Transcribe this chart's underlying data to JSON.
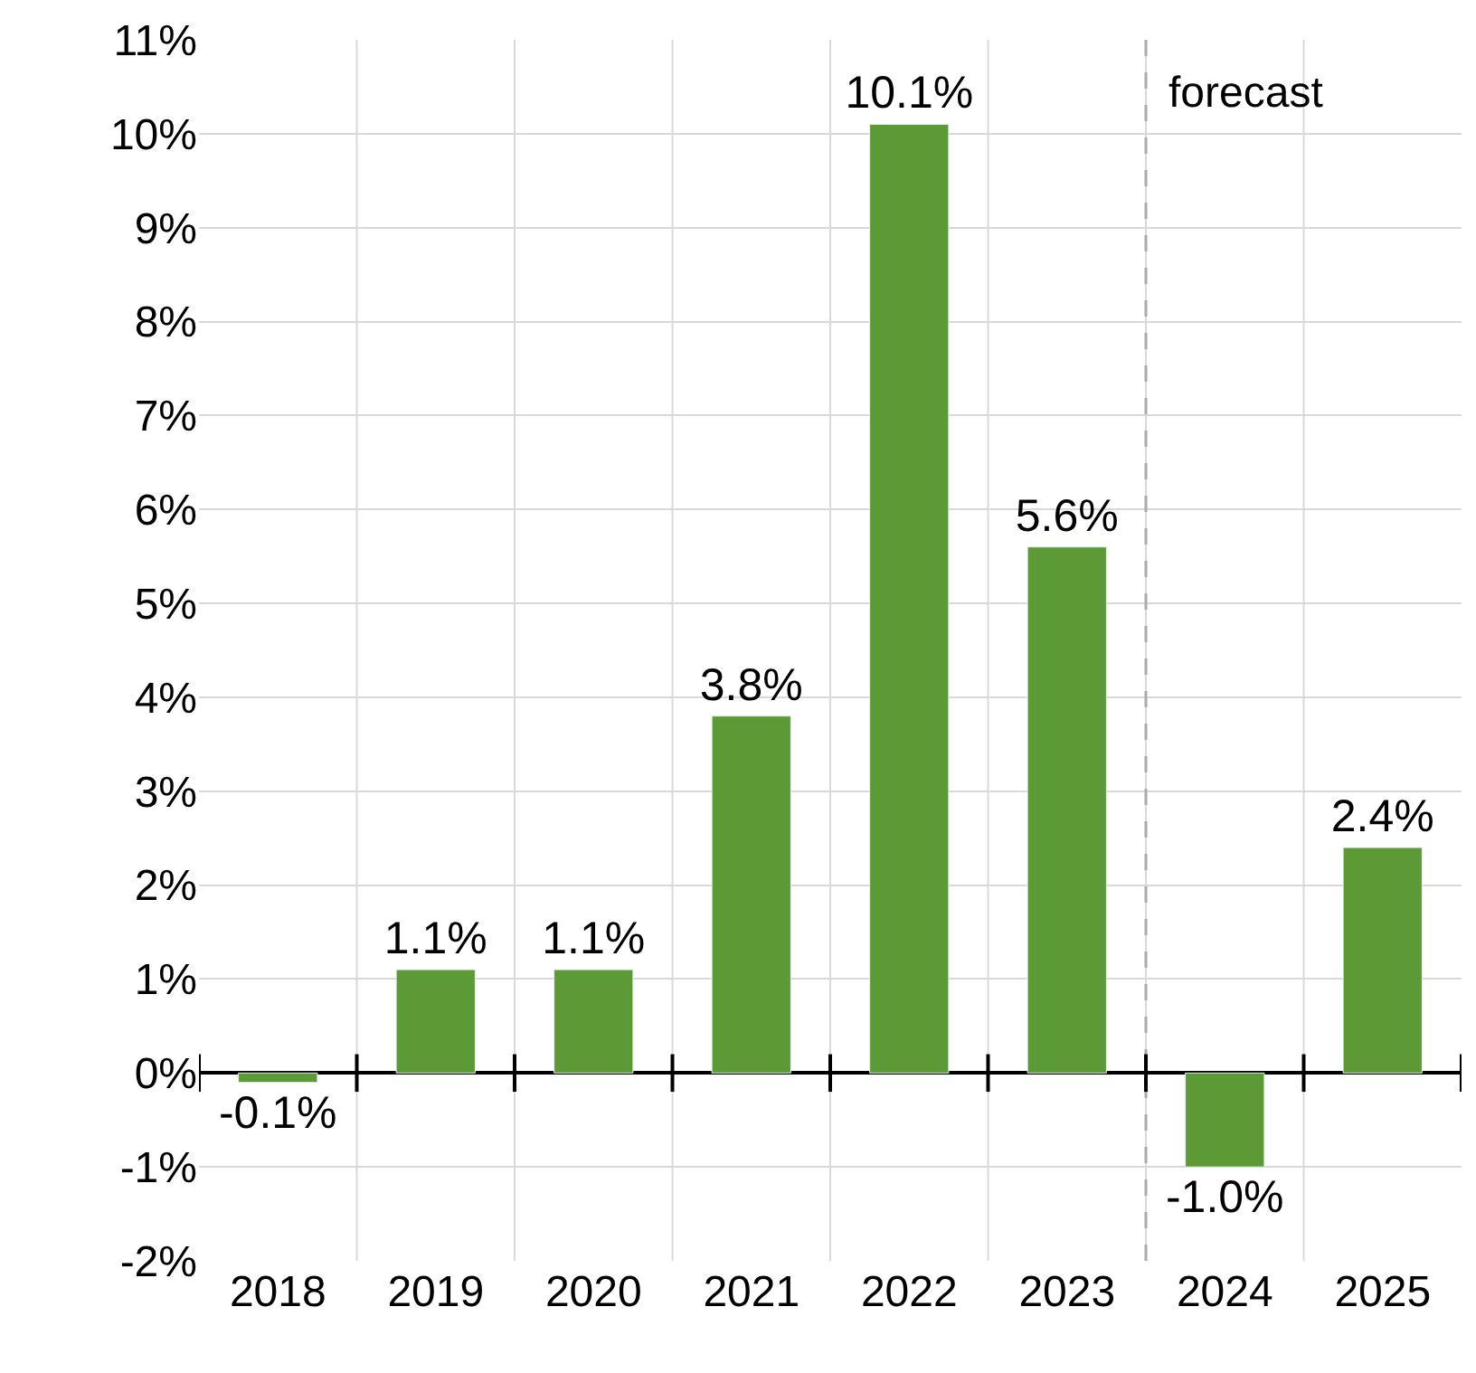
{
  "chart_data": {
    "type": "bar",
    "x": [
      2018,
      2019,
      2020,
      2021,
      2022,
      2023,
      2024,
      2025
    ],
    "values": [
      -0.1,
      1.1,
      1.1,
      3.8,
      10.1,
      5.6,
      -1.0,
      2.4
    ],
    "value_labels": [
      "-0.1%",
      "1.1%",
      "1.1%",
      "3.8%",
      "10.1%",
      "5.6%",
      "-1.0%",
      "2.4%"
    ],
    "color": "#5b9a35",
    "xlim": [
      2017.5,
      2025.5
    ],
    "xticks": [
      2018,
      2019,
      2020,
      2021,
      2022,
      2023,
      2024,
      2025
    ],
    "ylim": [
      -2,
      11
    ],
    "yticks": [
      {
        "value": -2,
        "label": "-2%"
      },
      {
        "value": -1,
        "label": "-1%"
      },
      {
        "value": 0,
        "label": "0%"
      },
      {
        "value": 1,
        "label": "1%"
      },
      {
        "value": 2,
        "label": "2%"
      },
      {
        "value": 3,
        "label": "3%"
      },
      {
        "value": 4,
        "label": "4%"
      },
      {
        "value": 5,
        "label": "5%"
      },
      {
        "value": 6,
        "label": "6%"
      },
      {
        "value": 7,
        "label": "7%"
      },
      {
        "value": 8,
        "label": "8%"
      },
      {
        "value": 9,
        "label": "9%"
      },
      {
        "value": 10,
        "label": "10%"
      },
      {
        "value": 11,
        "label": "11%"
      }
    ],
    "grid": true,
    "ref_lines": [
      {
        "axis": "x",
        "value": 2023.5,
        "label": "forecast",
        "color": "#aaaaaa",
        "line_style": "dashed"
      }
    ]
  }
}
